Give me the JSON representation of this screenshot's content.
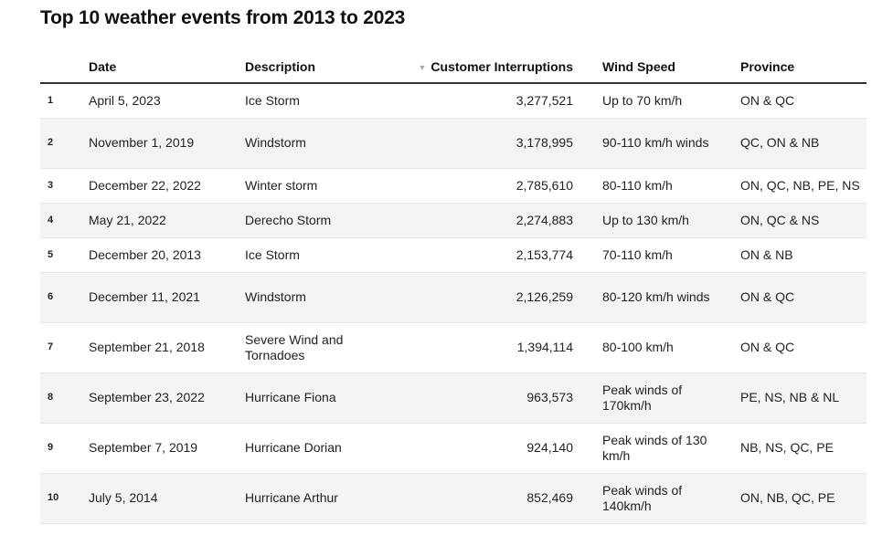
{
  "title": "Top 10 weather events from 2013 to 2023",
  "headers": {
    "date": "Date",
    "description": "Description",
    "customer_interruptions": "Customer Interruptions",
    "wind_speed": "Wind Speed",
    "province": "Province"
  },
  "sort_indicator": "▼",
  "rows": [
    {
      "rank": "1",
      "date": "April 5, 2023",
      "description": "Ice Storm",
      "customers": "3,277,521",
      "wind": "Up to 70 km/h",
      "province": "ON & QC"
    },
    {
      "rank": "2",
      "date": "November 1, 2019",
      "description": "Windstorm",
      "customers": "3,178,995",
      "wind": "90-110 km/h winds",
      "province": "QC, ON & NB"
    },
    {
      "rank": "3",
      "date": "December 22, 2022",
      "description": "Winter storm",
      "customers": "2,785,610",
      "wind": "80-110 km/h",
      "province": "ON, QC, NB, PE, NS"
    },
    {
      "rank": "4",
      "date": "May 21, 2022",
      "description": "Derecho Storm",
      "customers": "2,274,883",
      "wind": "Up to 130 km/h",
      "province": "ON, QC & NS"
    },
    {
      "rank": "5",
      "date": "December 20, 2013",
      "description": "Ice Storm",
      "customers": "2,153,774",
      "wind": "70-110 km/h",
      "province": "ON & NB"
    },
    {
      "rank": "6",
      "date": "December 11, 2021",
      "description": "Windstorm",
      "customers": "2,126,259",
      "wind": "80-120 km/h winds",
      "province": "ON & QC"
    },
    {
      "rank": "7",
      "date": "September 21, 2018",
      "description": "Severe Wind and Tornadoes",
      "customers": "1,394,114",
      "wind": "80-100 km/h",
      "province": "ON & QC"
    },
    {
      "rank": "8",
      "date": "September 23, 2022",
      "description": "Hurricane Fiona",
      "customers": "963,573",
      "wind": "Peak winds of 170km/h",
      "province": "PE, NS, NB & NL"
    },
    {
      "rank": "9",
      "date": "September 7, 2019",
      "description": "Hurricane Dorian",
      "customers": "924,140",
      "wind": "Peak winds of 130 km/h",
      "province": "NB, NS, QC, PE"
    },
    {
      "rank": "10",
      "date": "July 5, 2014",
      "description": "Hurricane Arthur",
      "customers": "852,469",
      "wind": "Peak winds of 140km/h",
      "province": "ON, NB, QC, PE"
    }
  ]
}
